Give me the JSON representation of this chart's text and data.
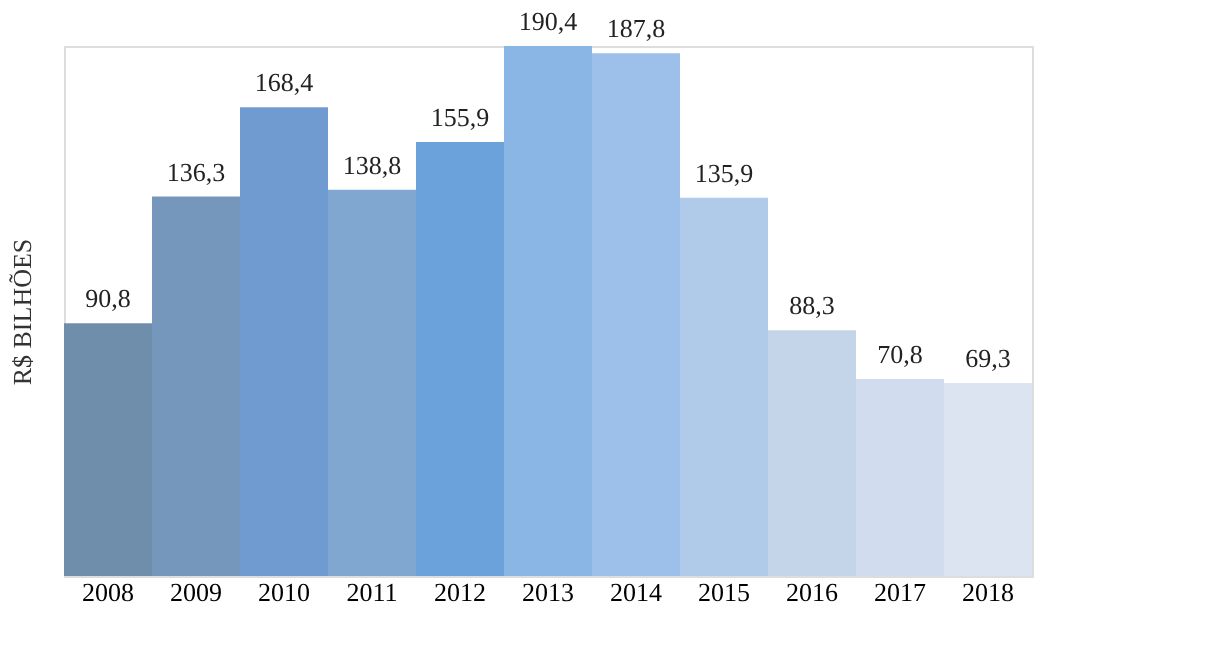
{
  "chart_data": {
    "type": "bar",
    "ylabel": "R$ BILHÕES",
    "categories": [
      "2008",
      "2009",
      "2010",
      "2011",
      "2012",
      "2013",
      "2014",
      "2015",
      "2016",
      "2017",
      "2018"
    ],
    "values": [
      90.8,
      136.3,
      168.4,
      138.8,
      155.9,
      190.4,
      187.8,
      135.9,
      88.3,
      70.8,
      69.3
    ],
    "value_labels": [
      "90,8",
      "136,3",
      "168,4",
      "138,8",
      "155,9",
      "190,4",
      "187,8",
      "135,9",
      "88,3",
      "70,8",
      "69,3"
    ],
    "colors": [
      "#6f8eab",
      "#7697bc",
      "#6f9bd0",
      "#80a7d0",
      "#6ca2dc",
      "#8ab6e6",
      "#9cc0e9",
      "#b0caea",
      "#c4d5ea",
      "#d1ddee",
      "#dce4f1"
    ],
    "grid": false
  }
}
